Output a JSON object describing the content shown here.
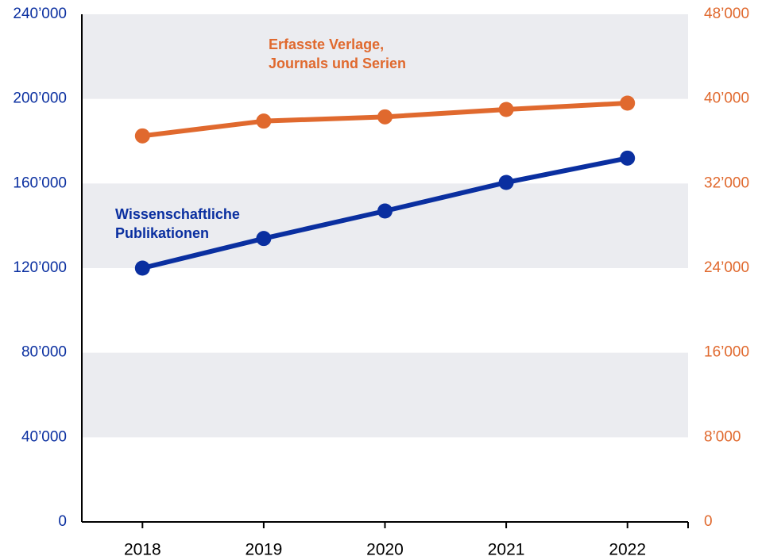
{
  "chart_data": {
    "type": "line",
    "categories": [
      "2018",
      "2019",
      "2020",
      "2021",
      "2022"
    ],
    "series": [
      {
        "name": "Wissenschaftliche Publikationen",
        "color": "#0a2fa0",
        "values": [
          120000,
          134000,
          147000,
          160500,
          172000
        ]
      },
      {
        "name": "Erfasste Verlage, Journals und Serien",
        "color": "#e0692e",
        "axis": "y2",
        "values": [
          36500,
          37900,
          38300,
          39000,
          39600
        ]
      }
    ],
    "ylim": [
      0,
      240000
    ],
    "yticks": [
      0,
      {
        "value": 40000,
        "label": "40’000"
      },
      {
        "value": 80000,
        "label": "80’000"
      },
      {
        "value": 120000,
        "label": "120’000"
      },
      {
        "value": 160000,
        "label": "160’000"
      },
      {
        "value": 200000,
        "label": "200’000"
      },
      {
        "value": 240000,
        "label": "240’000"
      }
    ],
    "y2lim": [
      0,
      48000
    ],
    "y2ticks": [
      0,
      {
        "value": 8000,
        "label": "8’000"
      },
      {
        "value": 16000,
        "label": "16’000"
      },
      {
        "value": 24000,
        "label": "24’000"
      },
      {
        "value": 32000,
        "label": "32’000"
      },
      {
        "value": 40000,
        "label": "40’000"
      },
      {
        "value": 48000,
        "label": "48’000"
      }
    ],
    "grid_bands": true
  }
}
